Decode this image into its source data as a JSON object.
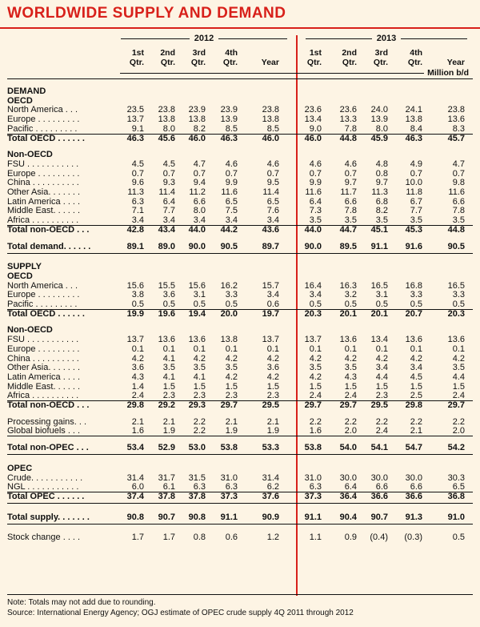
{
  "title": "WORLDWIDE SUPPLY AND DEMAND",
  "years": [
    "2012",
    "2013"
  ],
  "columns": [
    [
      "1st",
      "Qtr."
    ],
    [
      "2nd",
      "Qtr."
    ],
    [
      "3rd",
      "Qtr."
    ],
    [
      "4th",
      "Qtr."
    ],
    [
      "",
      "Year"
    ],
    [
      "1st",
      "Qtr."
    ],
    [
      "2nd",
      "Qtr."
    ],
    [
      "3rd",
      "Qtr."
    ],
    [
      "4th",
      "Qtr."
    ],
    [
      "",
      "Year"
    ]
  ],
  "unit": "Million b/d",
  "rows": [
    {
      "label": "DEMAND",
      "kind": "heading",
      "values": []
    },
    {
      "label": "OECD",
      "kind": "heading",
      "values": []
    },
    {
      "label": "North America . . .",
      "kind": "",
      "values": [
        "23.5",
        "23.8",
        "23.9",
        "23.9",
        "23.8",
        "23.6",
        "23.6",
        "24.0",
        "24.1",
        "23.8"
      ]
    },
    {
      "label": "Europe . . . . . . . . .",
      "kind": "",
      "values": [
        "13.7",
        "13.8",
        "13.8",
        "13.9",
        "13.8",
        "13.4",
        "13.3",
        "13.9",
        "13.8",
        "13.6"
      ]
    },
    {
      "label": "Pacific . . . . . . . . .",
      "kind": "ul",
      "values": [
        "9.1",
        "8.0",
        "8.2",
        "8.5",
        "8.5",
        "9.0",
        "7.8",
        "8.0",
        "8.4",
        "8.3"
      ]
    },
    {
      "label": "Total OECD . . . . . .",
      "kind": "bold",
      "values": [
        "46.3",
        "45.6",
        "46.0",
        "46.3",
        "46.0",
        "46.0",
        "44.8",
        "45.9",
        "46.3",
        "45.7"
      ]
    },
    {
      "label": "",
      "kind": "gap",
      "values": []
    },
    {
      "label": "Non-OECD",
      "kind": "heading",
      "values": []
    },
    {
      "label": "FSU . . . . . . . . . . .",
      "kind": "",
      "values": [
        "4.5",
        "4.5",
        "4.7",
        "4.6",
        "4.6",
        "4.6",
        "4.6",
        "4.8",
        "4.9",
        "4.7"
      ]
    },
    {
      "label": "Europe . . . . . . . . .",
      "kind": "",
      "values": [
        "0.7",
        "0.7",
        "0.7",
        "0.7",
        "0.7",
        "0.7",
        "0.7",
        "0.8",
        "0.7",
        "0.7"
      ]
    },
    {
      "label": "China . . . . . . . . . .",
      "kind": "",
      "values": [
        "9.6",
        "9.3",
        "9.4",
        "9.9",
        "9.5",
        "9.9",
        "9.7",
        "9.7",
        "10.0",
        "9.8"
      ]
    },
    {
      "label": "Other Asia. . . . . . .",
      "kind": "",
      "values": [
        "11.3",
        "11.4",
        "11.2",
        "11.6",
        "11.4",
        "11.6",
        "11.7",
        "11.3",
        "11.8",
        "11.6"
      ]
    },
    {
      "label": "Latin America . . . .",
      "kind": "",
      "values": [
        "6.3",
        "6.4",
        "6.6",
        "6.5",
        "6.5",
        "6.4",
        "6.6",
        "6.8",
        "6.7",
        "6.6"
      ]
    },
    {
      "label": "Middle East. . . . . .",
      "kind": "",
      "values": [
        "7.1",
        "7.7",
        "8.0",
        "7.5",
        "7.6",
        "7.3",
        "7.8",
        "8.2",
        "7.7",
        "7.8"
      ]
    },
    {
      "label": "Africa . . . . . . . . . .",
      "kind": "ul",
      "values": [
        "3.4",
        "3.4",
        "3.4",
        "3.4",
        "3.4",
        "3.5",
        "3.5",
        "3.5",
        "3.5",
        "3.5"
      ]
    },
    {
      "label": "Total non-OECD . . .",
      "kind": "bold",
      "values": [
        "42.8",
        "43.4",
        "44.0",
        "44.2",
        "43.6",
        "44.0",
        "44.7",
        "45.1",
        "45.3",
        "44.8"
      ]
    },
    {
      "label": "",
      "kind": "gap",
      "values": []
    },
    {
      "label": "Total demand. . . . . .",
      "kind": "bold sepbot",
      "values": [
        "89.1",
        "89.0",
        "90.0",
        "90.5",
        "89.7",
        "90.0",
        "89.5",
        "91.1",
        "91.6",
        "90.5"
      ]
    },
    {
      "label": "",
      "kind": "gap",
      "values": []
    },
    {
      "label": "SUPPLY",
      "kind": "heading",
      "values": []
    },
    {
      "label": "OECD",
      "kind": "heading",
      "values": []
    },
    {
      "label": "North America . . .",
      "kind": "",
      "values": [
        "15.6",
        "15.5",
        "15.6",
        "16.2",
        "15.7",
        "16.4",
        "16.3",
        "16.5",
        "16.8",
        "16.5"
      ]
    },
    {
      "label": "Europe . . . . . . . . .",
      "kind": "",
      "values": [
        "3.8",
        "3.6",
        "3.1",
        "3.3",
        "3.4",
        "3.4",
        "3.2",
        "3.1",
        "3.3",
        "3.3"
      ]
    },
    {
      "label": "Pacific . . . . . . . . .",
      "kind": "ul",
      "values": [
        "0.5",
        "0.5",
        "0.5",
        "0.5",
        "0.6",
        "0.5",
        "0.5",
        "0.5",
        "0.5",
        "0.5"
      ]
    },
    {
      "label": "Total OECD . . . . . .",
      "kind": "bold",
      "values": [
        "19.9",
        "19.6",
        "19.4",
        "20.0",
        "19.7",
        "20.3",
        "20.1",
        "20.1",
        "20.7",
        "20.3"
      ]
    },
    {
      "label": "",
      "kind": "gap",
      "values": []
    },
    {
      "label": "Non-OECD",
      "kind": "heading",
      "values": []
    },
    {
      "label": "FSU . . . . . . . . . . .",
      "kind": "",
      "values": [
        "13.7",
        "13.6",
        "13.6",
        "13.8",
        "13.7",
        "13.7",
        "13.6",
        "13.4",
        "13.6",
        "13.6"
      ]
    },
    {
      "label": "Europe . . . . . . . . .",
      "kind": "",
      "values": [
        "0.1",
        "0.1",
        "0.1",
        "0.1",
        "0.1",
        "0.1",
        "0.1",
        "0.1",
        "0.1",
        "0.1"
      ]
    },
    {
      "label": "China . . . . . . . . . .",
      "kind": "",
      "values": [
        "4.2",
        "4.1",
        "4.2",
        "4.2",
        "4.2",
        "4.2",
        "4.2",
        "4.2",
        "4.2",
        "4.2"
      ]
    },
    {
      "label": "Other Asia. . . . . . .",
      "kind": "",
      "values": [
        "3.6",
        "3.5",
        "3.5",
        "3.5",
        "3.6",
        "3.5",
        "3.5",
        "3.4",
        "3.4",
        "3.5"
      ]
    },
    {
      "label": "Latin America . . . .",
      "kind": "",
      "values": [
        "4.3",
        "4.1",
        "4.1",
        "4.2",
        "4.2",
        "4.2",
        "4.3",
        "4.4",
        "4.5",
        "4.4"
      ]
    },
    {
      "label": "Middle East. . . . . .",
      "kind": "",
      "values": [
        "1.4",
        "1.5",
        "1.5",
        "1.5",
        "1.5",
        "1.5",
        "1.5",
        "1.5",
        "1.5",
        "1.5"
      ]
    },
    {
      "label": "Africa . . . . . . . . . .",
      "kind": "ul",
      "values": [
        "2.4",
        "2.3",
        "2.3",
        "2.3",
        "2.3",
        "2.4",
        "2.4",
        "2.3",
        "2.5",
        "2.4"
      ]
    },
    {
      "label": "Total non-OECD . . .",
      "kind": "bold",
      "values": [
        "29.8",
        "29.2",
        "29.3",
        "29.7",
        "29.5",
        "29.7",
        "29.7",
        "29.5",
        "29.8",
        "29.7"
      ]
    },
    {
      "label": "",
      "kind": "gap",
      "values": []
    },
    {
      "label": "Processing gains. . .",
      "kind": "",
      "values": [
        "2.1",
        "2.1",
        "2.2",
        "2.1",
        "2.1",
        "2.2",
        "2.2",
        "2.2",
        "2.2",
        "2.2"
      ]
    },
    {
      "label": "Global biofuels . . .",
      "kind": "ul",
      "values": [
        "1.6",
        "1.9",
        "2.2",
        "1.9",
        "1.9",
        "1.6",
        "2.0",
        "2.4",
        "2.1",
        "2.0"
      ]
    },
    {
      "label": "",
      "kind": "gap",
      "values": []
    },
    {
      "label": "Total non-OPEC . . .",
      "kind": "bold sepbot",
      "values": [
        "53.4",
        "52.9",
        "53.0",
        "53.8",
        "53.3",
        "53.8",
        "54.0",
        "54.1",
        "54.7",
        "54.2"
      ]
    },
    {
      "label": "",
      "kind": "gap",
      "values": []
    },
    {
      "label": "OPEC",
      "kind": "heading",
      "values": []
    },
    {
      "label": "Crude. . . . . . . . . . .",
      "kind": "",
      "values": [
        "31.4",
        "31.7",
        "31.5",
        "31.0",
        "31.4",
        "31.0",
        "30.0",
        "30.0",
        "30.0",
        "30.3"
      ]
    },
    {
      "label": "NGL . . . . . . . . . . .",
      "kind": "ul",
      "values": [
        "6.0",
        "6.1",
        "6.3",
        "6.3",
        "6.2",
        "6.3",
        "6.4",
        "6.6",
        "6.6",
        "6.5"
      ]
    },
    {
      "label": "Total OPEC . . . . . .",
      "kind": "bold sepbot",
      "values": [
        "37.4",
        "37.8",
        "37.8",
        "37.3",
        "37.6",
        "37.3",
        "36.4",
        "36.6",
        "36.6",
        "36.8"
      ]
    },
    {
      "label": "",
      "kind": "gap",
      "values": []
    },
    {
      "label": "Total supply. . . . . . .",
      "kind": "bold sepbot",
      "values": [
        "90.8",
        "90.7",
        "90.8",
        "91.1",
        "90.9",
        "91.1",
        "90.4",
        "90.7",
        "91.3",
        "91.0"
      ]
    },
    {
      "label": "",
      "kind": "gap",
      "values": []
    },
    {
      "label": "Stock change . . . .",
      "kind": "",
      "values": [
        "1.7",
        "1.7",
        "0.8",
        "0.6",
        "1.2",
        "1.1",
        "0.9",
        "(0.4)",
        "(0.3)",
        "0.5"
      ]
    }
  ],
  "notes": [
    "Note: Totals may not add due to rounding.",
    "Source: International Energy Agency; OGJ estimate of OPEC crude supply 4Q 2011 through 2012"
  ],
  "colors": {
    "accent": "#d8201a",
    "background": "#fdf4e4"
  }
}
